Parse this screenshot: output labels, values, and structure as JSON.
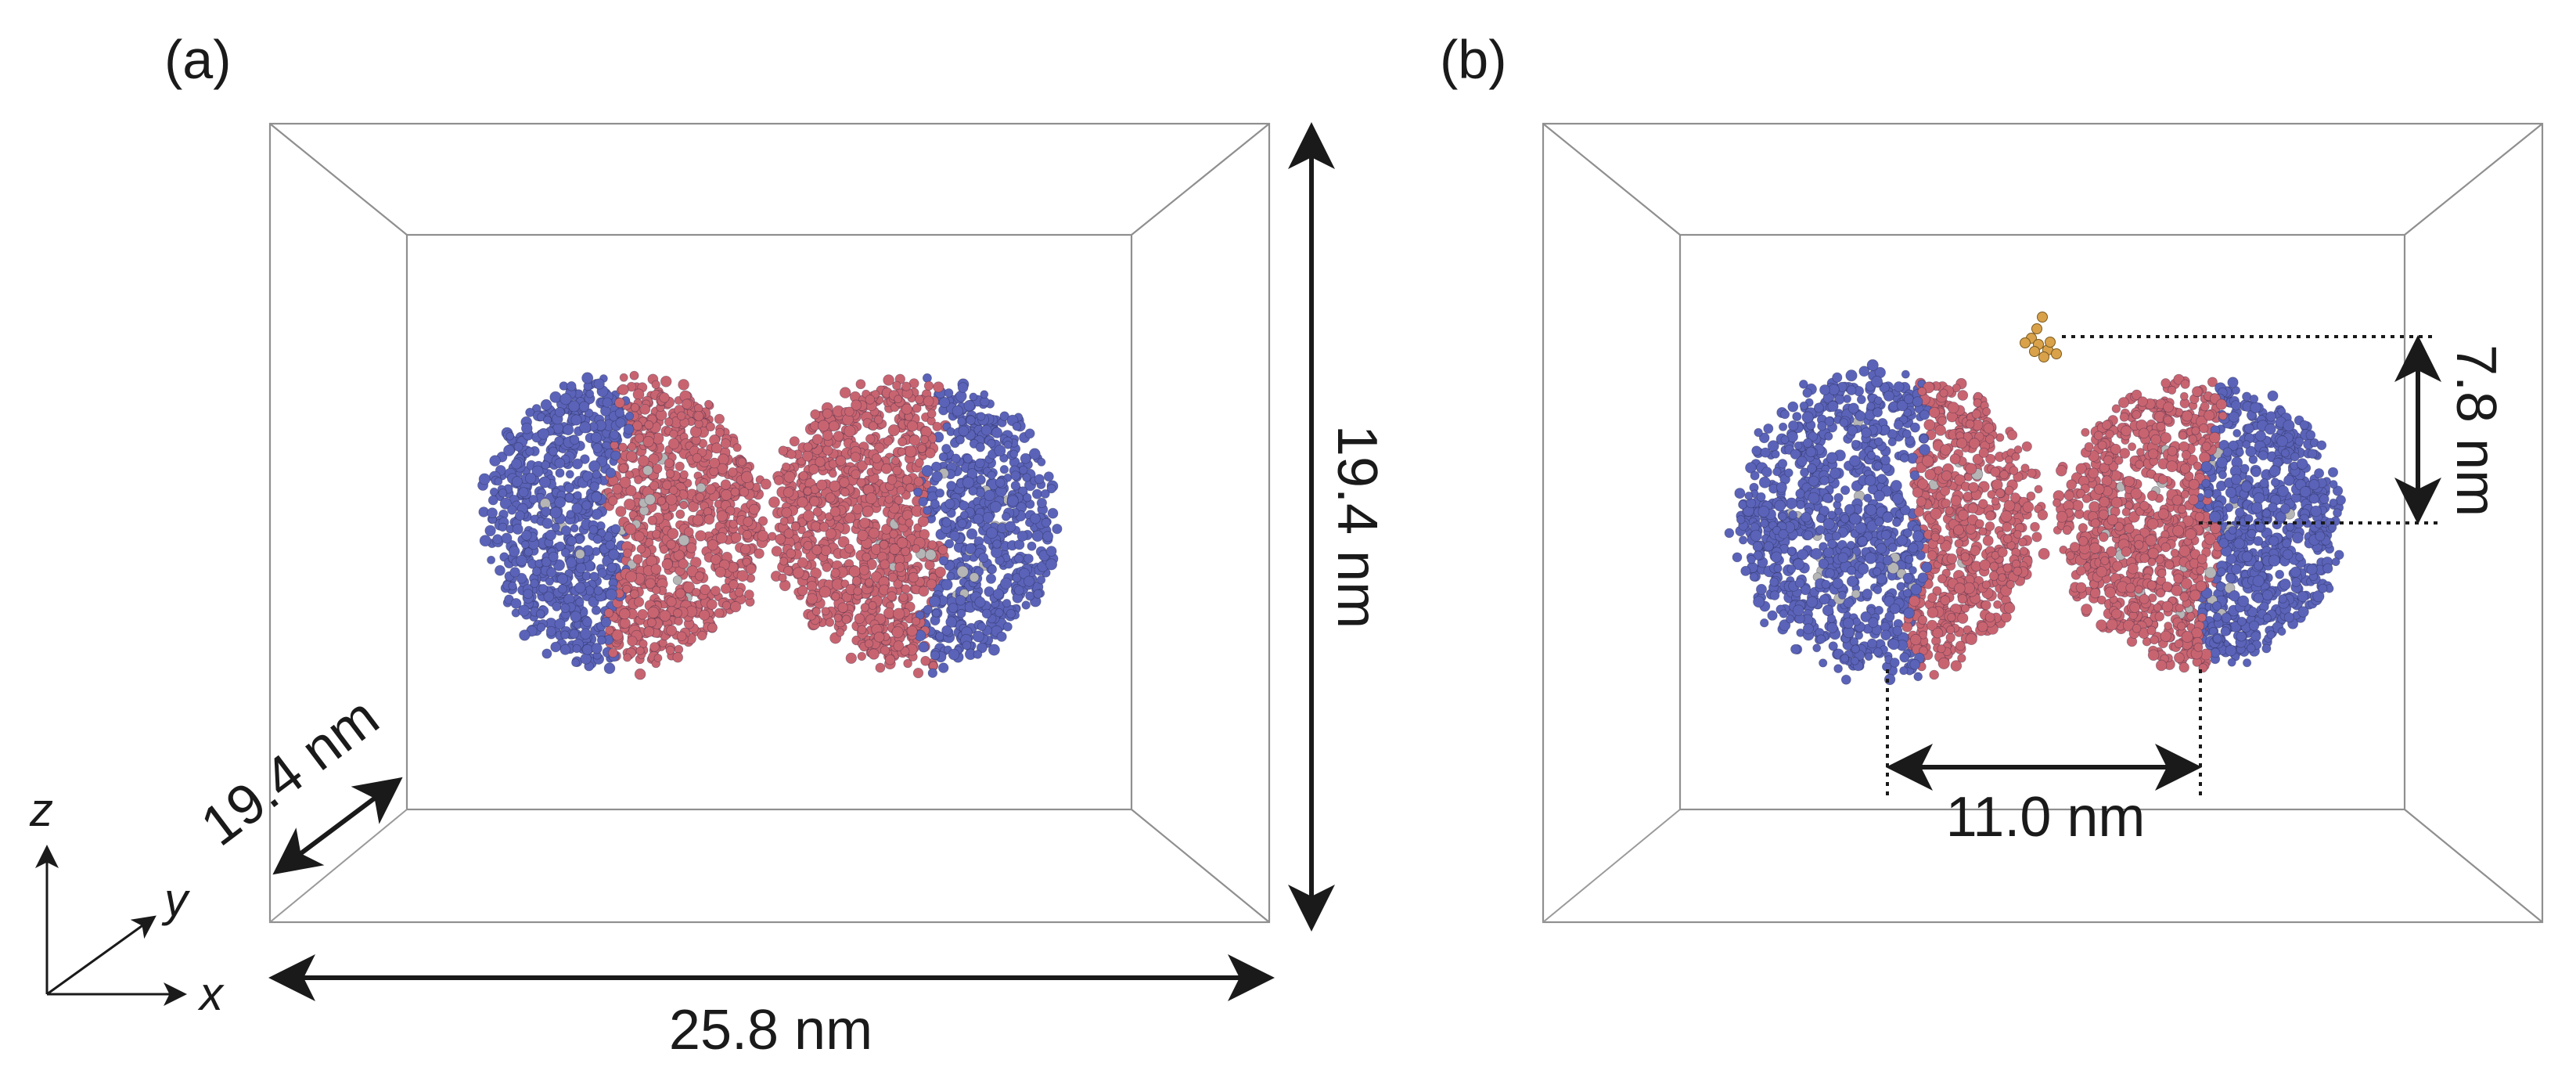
{
  "panels": {
    "a": {
      "label": "(a)",
      "depth_label": "19.4 nm",
      "height_label": "19.4 nm",
      "width_label": "25.8 nm"
    },
    "b": {
      "label": "(b)",
      "height_offset_label": "7.8 nm",
      "separation_label": "11.0 nm"
    }
  },
  "axes": {
    "x": "x",
    "y": "y",
    "z": "z"
  },
  "colors": {
    "blue_bead": "#5a63b8",
    "red_bead": "#c86470",
    "gray_bead": "#b5b5b5",
    "orange_bead": "#d9a24a",
    "box_line": "#8f8f8f",
    "text": "#1a1a1a"
  }
}
